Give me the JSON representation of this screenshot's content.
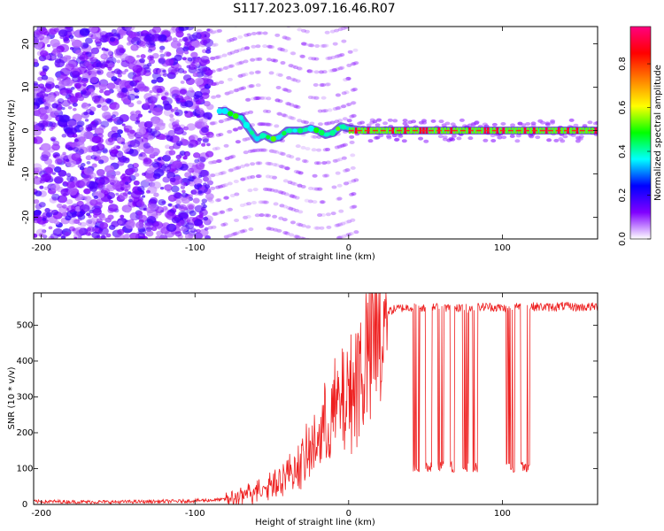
{
  "figure": {
    "title": "S117.2023.097.16.46.R07"
  },
  "chart_data": [
    {
      "type": "heatmap",
      "xlabel": "Height of straight line (km)",
      "ylabel": "Frequency (Hz)",
      "xlim": [
        -205,
        162
      ],
      "ylim": [
        -25,
        24
      ],
      "xticks": [
        -200,
        -100,
        0,
        100
      ],
      "yticks": [
        -20,
        -10,
        0,
        10,
        20
      ],
      "colorbar": {
        "label": "Normalized spectral amplitude",
        "range": [
          0,
          0.97
        ],
        "ticks": [
          0.0,
          0.2,
          0.4,
          0.6,
          0.8
        ],
        "colors": [
          "#ffffff",
          "#8000ff",
          "#0000ff",
          "#00ffff",
          "#00ff00",
          "#ffff00",
          "#ff8000",
          "#ff0000",
          "#ff0080"
        ]
      },
      "ridge": {
        "x": [
          -85,
          -80,
          -75,
          -70,
          -65,
          -60,
          -55,
          -50,
          -45,
          -40,
          -35,
          -30,
          -25,
          -20,
          -15,
          -10,
          -5,
          0,
          10,
          30,
          60,
          100,
          162
        ],
        "y": [
          4.5,
          4.5,
          3.5,
          3.0,
          0.5,
          -2.0,
          -1.0,
          -2.0,
          -1.5,
          0.0,
          0.0,
          0.0,
          0.5,
          0.0,
          -1.0,
          -0.5,
          1.0,
          0.5,
          0.0,
          0.0,
          0.0,
          0.0,
          0.0
        ]
      }
    },
    {
      "type": "line",
      "xlabel": "Height of straight line (km)",
      "ylabel": "SNR (10 * v/v)",
      "xlim": [
        -205,
        162
      ],
      "ylim": [
        0,
        590
      ],
      "xticks": [
        -200,
        -100,
        0,
        100
      ],
      "yticks": [
        0,
        100,
        200,
        300,
        400,
        500
      ],
      "series": [
        {
          "color": "#ee2020",
          "x": [
            -205,
            -190,
            -170,
            -150,
            -130,
            -110,
            -90,
            -80,
            -70,
            -65,
            -60,
            -55,
            -50,
            -45,
            -40,
            -35,
            -30,
            -25,
            -20,
            -15,
            -10,
            -5,
            0,
            5,
            10,
            15,
            20,
            25,
            30,
            35,
            40,
            50,
            60,
            70,
            80,
            90,
            100,
            110,
            120,
            130,
            140,
            150,
            162
          ],
          "y": [
            8,
            8,
            7,
            7,
            8,
            9,
            12,
            14,
            22,
            35,
            45,
            55,
            65,
            80,
            90,
            110,
            130,
            165,
            200,
            240,
            280,
            310,
            340,
            390,
            440,
            490,
            520,
            535,
            545,
            548,
            550,
            548,
            550,
            546,
            548,
            552,
            548,
            550,
            552,
            550,
            553,
            550,
            552
          ]
        }
      ]
    }
  ]
}
